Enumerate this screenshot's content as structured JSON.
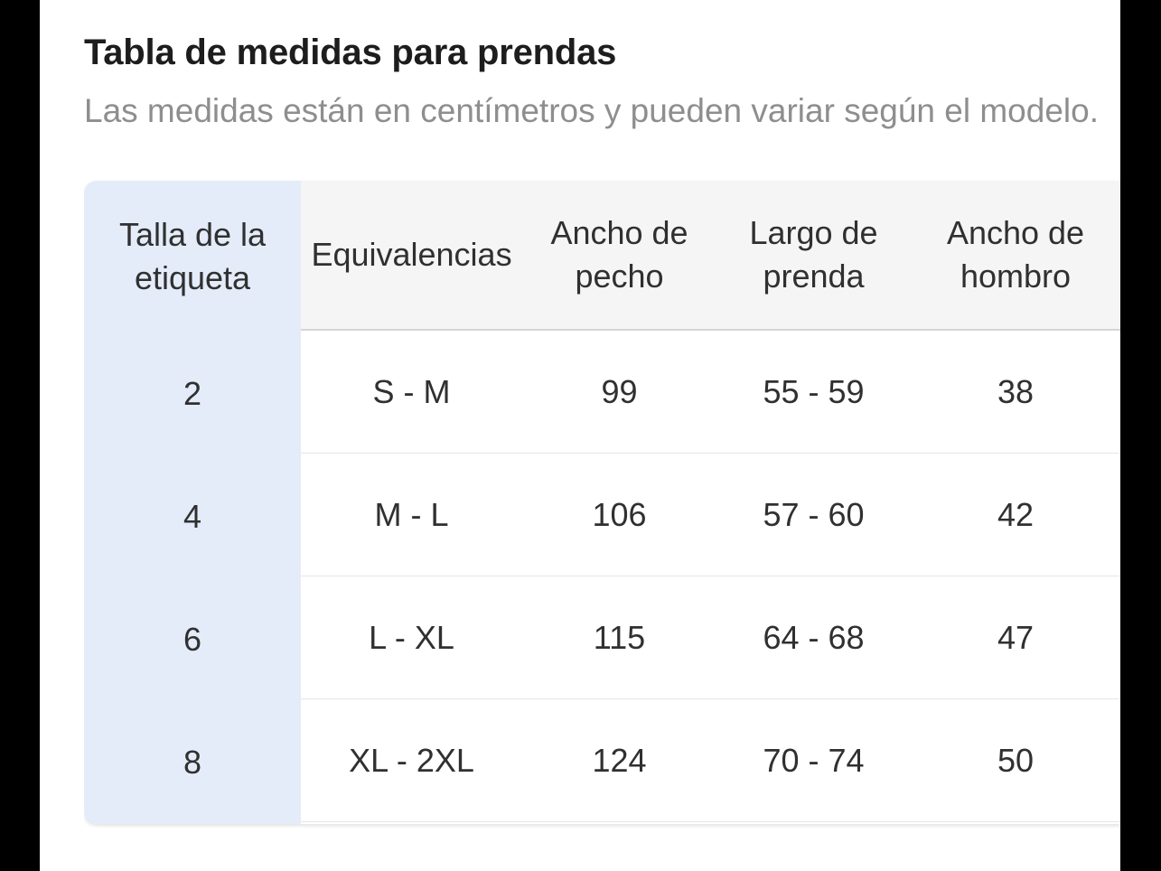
{
  "header": {
    "title": "Tabla de medidas para prendas",
    "subtitle": "Las medidas están en centímetros y pueden variar según el modelo."
  },
  "table": {
    "label_header": "Talla de la etiqueta",
    "columns": [
      "Equivalencias",
      "Ancho de pecho",
      "Largo de prenda",
      "Ancho de hombro"
    ],
    "rows": [
      {
        "label": "2",
        "cells": [
          "S - M",
          "99",
          "55 - 59",
          "38"
        ]
      },
      {
        "label": "4",
        "cells": [
          "M - L",
          "106",
          "57 - 60",
          "42"
        ]
      },
      {
        "label": "6",
        "cells": [
          "L - XL",
          "115",
          "64 - 68",
          "47"
        ]
      },
      {
        "label": "8",
        "cells": [
          "XL - 2XL",
          "124",
          "70 - 74",
          "50"
        ]
      }
    ],
    "units": "cm"
  },
  "colors": {
    "accent_blue": "#e4ecfa",
    "header_gray": "#f5f5f5",
    "divider": "#e6e6e6",
    "header_divider": "#d5d5d5",
    "title_text": "#1d1d1d",
    "subtitle_text": "#8e8e8e",
    "cell_text": "#303030",
    "letterbox": "#000000"
  }
}
